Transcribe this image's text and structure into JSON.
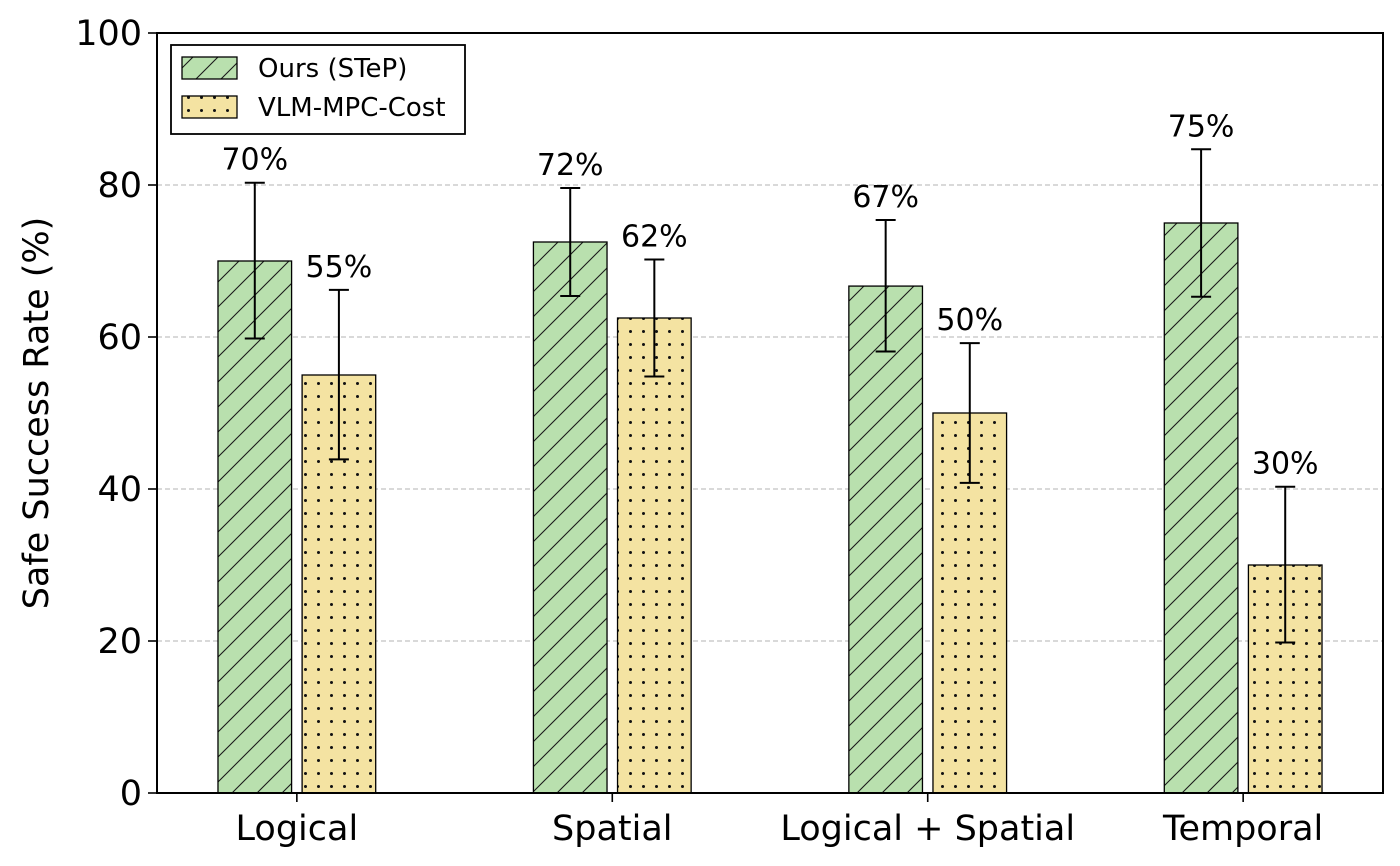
{
  "chart_data": {
    "type": "bar",
    "title": "",
    "xlabel": "",
    "ylabel": "Safe Success Rate (%)",
    "ylim": [
      0,
      100
    ],
    "yticks": [
      0,
      20,
      40,
      60,
      80,
      100
    ],
    "grid": "y-dashed",
    "legend_position": "top-left",
    "categories": [
      "Logical",
      "Spatial",
      "Logical + Spatial",
      "Temporal"
    ],
    "series": [
      {
        "name": "Ours (STeP)",
        "color": "#b9e0ae",
        "pattern": "diagonal-hatch",
        "values": [
          70,
          72.5,
          66.7,
          75
        ],
        "errors": [
          [
            59.8,
            80.3
          ],
          [
            65.4,
            79.6
          ],
          [
            58.1,
            75.4
          ],
          [
            65.3,
            84.7
          ]
        ],
        "labels": [
          "70%",
          "72%",
          "67%",
          "75%"
        ]
      },
      {
        "name": "VLM-MPC-Cost",
        "color": "#f4e3a2",
        "pattern": "dots",
        "values": [
          55,
          62.5,
          50,
          30
        ],
        "errors": [
          [
            43.9,
            66.2
          ],
          [
            54.8,
            70.2
          ],
          [
            40.8,
            59.2
          ],
          [
            19.8,
            40.3
          ]
        ],
        "labels": [
          "55%",
          "62%",
          "50%",
          "30%"
        ]
      }
    ]
  }
}
